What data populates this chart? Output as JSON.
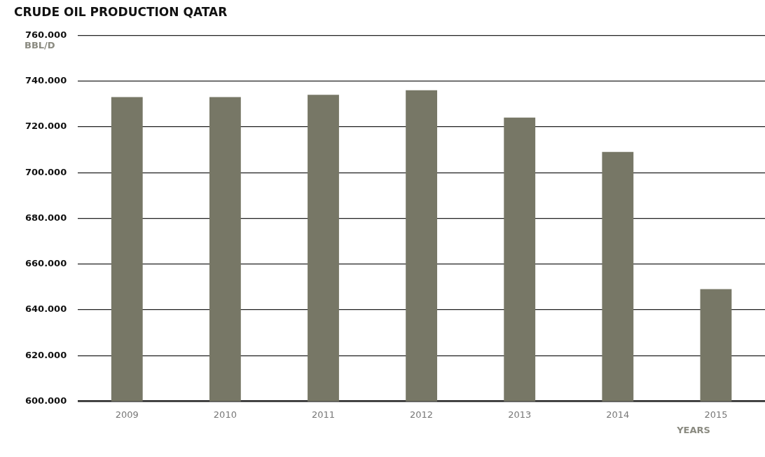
{
  "chart_data": {
    "type": "bar",
    "title": "CRUDE OIL PRODUCTION QATAR",
    "ylabel": "BBL/D",
    "xlabel": "YEARS",
    "categories": [
      "2009",
      "2010",
      "2011",
      "2012",
      "2013",
      "2014",
      "2015"
    ],
    "values": [
      733000,
      733000,
      734000,
      736000,
      724000,
      709000,
      649000
    ],
    "color": "#777766",
    "ylim": [
      600000,
      760000
    ],
    "yticks": [
      {
        "value": 600000,
        "label": "600.000"
      },
      {
        "value": 620000,
        "label": "620.000"
      },
      {
        "value": 640000,
        "label": "640.000"
      },
      {
        "value": 660000,
        "label": "660.000"
      },
      {
        "value": 680000,
        "label": "680.000"
      },
      {
        "value": 700000,
        "label": "700.000"
      },
      {
        "value": 720000,
        "label": "720.000"
      },
      {
        "value": 740000,
        "label": "740.000"
      },
      {
        "value": 760000,
        "label": "760.000"
      }
    ],
    "grid": "y"
  }
}
